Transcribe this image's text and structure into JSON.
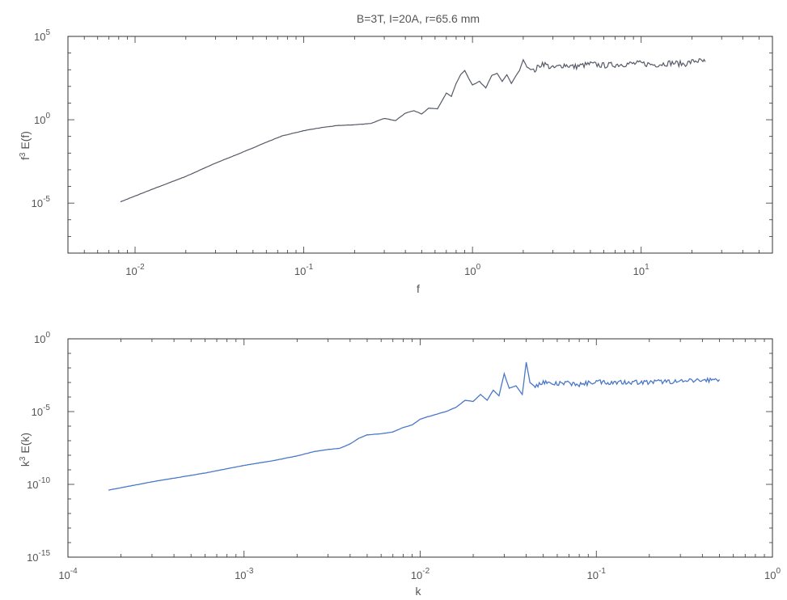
{
  "chart_data": [
    {
      "type": "line",
      "title": "B=3T, I=20A, r=65.6 mm",
      "xlabel": "f",
      "ylabel_base": "f",
      "ylabel_sup": "3",
      "ylabel_rest": " E(f)",
      "xscale": "log",
      "yscale": "log",
      "xlim": [
        0.004,
        60
      ],
      "ylim": [
        1e-08,
        100000
      ],
      "grid": false,
      "color": "#555a66",
      "x_ticks": [
        {
          "base": "10",
          "exp": "-2",
          "value": 0.01
        },
        {
          "base": "10",
          "exp": "-1",
          "value": 0.1
        },
        {
          "base": "10",
          "exp": "0",
          "value": 1
        },
        {
          "base": "10",
          "exp": "1",
          "value": 10
        }
      ],
      "y_ticks": [
        {
          "base": "10",
          "exp": "-5",
          "value": 1e-05
        },
        {
          "base": "10",
          "exp": "0",
          "value": 1
        },
        {
          "base": "10",
          "exp": "5",
          "value": 100000
        }
      ],
      "series": [
        {
          "x": [
            0.0082,
            0.012,
            0.02,
            0.03,
            0.045,
            0.06,
            0.075,
            0.1,
            0.13,
            0.16,
            0.2,
            0.25,
            0.3,
            0.35,
            0.4,
            0.45,
            0.5,
            0.55,
            0.62,
            0.7,
            0.75,
            0.8,
            0.85,
            0.9,
            0.95,
            1.0,
            1.1,
            1.2,
            1.3,
            1.4,
            1.5,
            1.6,
            1.7,
            1.8,
            1.9,
            2.0,
            2.1,
            2.3,
            2.6,
            3.0,
            3.5,
            4.0,
            5.0,
            6.0,
            7.0,
            8.0,
            10.0,
            12.0,
            15.0,
            18.0,
            21.0,
            24.0
          ],
          "y": [
            1.2e-05,
            5.5e-05,
            0.0004,
            0.0025,
            0.013,
            0.045,
            0.11,
            0.22,
            0.35,
            0.45,
            0.5,
            0.6,
            1.2,
            0.9,
            2.5,
            3.5,
            2.2,
            5.0,
            4.5,
            40,
            25,
            150,
            500,
            900,
            300,
            120,
            200,
            80,
            450,
            600,
            200,
            500,
            150,
            400,
            900,
            4000,
            1500,
            800,
            2500,
            1200,
            2000,
            1500,
            2200,
            1800,
            2000,
            2200,
            2400,
            2000,
            2600,
            2200,
            3500,
            3000
          ]
        }
      ]
    },
    {
      "type": "line",
      "title": "",
      "xlabel": "k",
      "ylabel_base": "k",
      "ylabel_sup": "3",
      "ylabel_rest": " E(k)",
      "xscale": "log",
      "yscale": "log",
      "xlim": [
        0.0001,
        1
      ],
      "ylim": [
        1e-15,
        1
      ],
      "grid": false,
      "color": "#4a78c8",
      "x_ticks": [
        {
          "base": "10",
          "exp": "-4",
          "value": 0.0001
        },
        {
          "base": "10",
          "exp": "-3",
          "value": 0.001
        },
        {
          "base": "10",
          "exp": "-2",
          "value": 0.01
        },
        {
          "base": "10",
          "exp": "-1",
          "value": 0.1
        },
        {
          "base": "10",
          "exp": "0",
          "value": 1
        }
      ],
      "y_ticks": [
        {
          "base": "10",
          "exp": "-15",
          "value": 1e-15
        },
        {
          "base": "10",
          "exp": "-10",
          "value": 1e-10
        },
        {
          "base": "10",
          "exp": "-5",
          "value": 1e-05
        },
        {
          "base": "10",
          "exp": "0",
          "value": 1
        }
      ],
      "series": [
        {
          "x": [
            0.00017,
            0.0003,
            0.0006,
            0.001,
            0.0015,
            0.002,
            0.0025,
            0.003,
            0.0035,
            0.004,
            0.0045,
            0.005,
            0.006,
            0.007,
            0.008,
            0.009,
            0.01,
            0.012,
            0.014,
            0.016,
            0.018,
            0.02,
            0.022,
            0.024,
            0.026,
            0.028,
            0.03,
            0.032,
            0.035,
            0.038,
            0.04,
            0.042,
            0.045,
            0.05,
            0.055,
            0.06,
            0.07,
            0.08,
            0.1,
            0.12,
            0.15,
            0.2,
            0.25,
            0.3,
            0.35,
            0.4,
            0.5
          ],
          "y": [
            4e-11,
            1.5e-10,
            6e-10,
            2e-09,
            4.5e-09,
            9e-09,
            1.8e-08,
            2.5e-08,
            3e-08,
            6e-08,
            1.5e-07,
            2.5e-07,
            3e-07,
            4e-07,
            8e-07,
            1.2e-06,
            3e-06,
            6e-06,
            1e-05,
            2e-05,
            6e-05,
            5e-05,
            0.00015,
            6e-05,
            0.0003,
            0.00012,
            0.004,
            0.0004,
            0.0006,
            0.00015,
            0.025,
            0.001,
            0.0005,
            0.0012,
            0.0008,
            0.0008,
            0.0009,
            0.0007,
            0.0012,
            0.001,
            0.0011,
            0.001,
            0.0012,
            0.0011,
            0.0013,
            0.0014,
            0.0016
          ]
        }
      ]
    }
  ]
}
